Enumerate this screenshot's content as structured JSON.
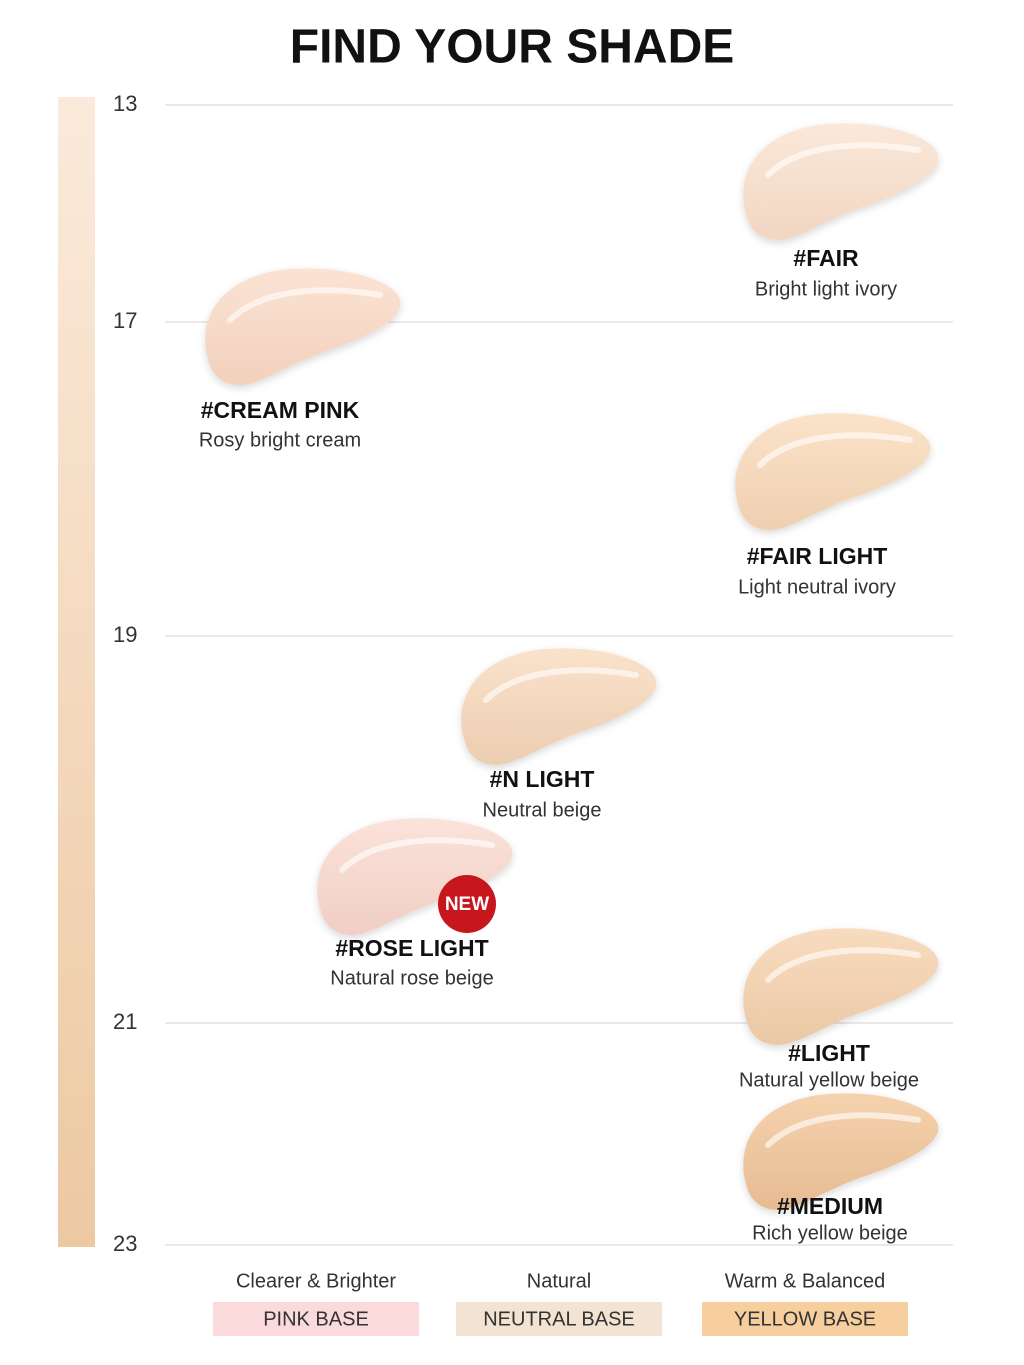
{
  "header": {
    "title": "FIND YOUR SHADE"
  },
  "scale": {
    "ticks": [
      "13",
      "17",
      "19",
      "21",
      "23"
    ]
  },
  "shades": [
    {
      "name": "#FAIR",
      "description": "Bright light ivory"
    },
    {
      "name": "#CREAM PINK",
      "description": "Rosy bright cream"
    },
    {
      "name": "#FAIR LIGHT",
      "description": "Light neutral ivory"
    },
    {
      "name": "#N LIGHT",
      "description": "Neutral beige"
    },
    {
      "name": "#ROSE LIGHT",
      "description": "Natural rose beige",
      "badge": "NEW"
    },
    {
      "name": "#LIGHT",
      "description": "Natural yellow beige"
    },
    {
      "name": "#MEDIUM",
      "description": "Rich yellow beige"
    }
  ],
  "bases": [
    {
      "description": "Clearer & Brighter",
      "label": "PINK BASE"
    },
    {
      "description": "Natural",
      "label": "NEUTRAL BASE"
    },
    {
      "description": "Warm & Balanced",
      "label": "YELLOW BASE"
    }
  ]
}
